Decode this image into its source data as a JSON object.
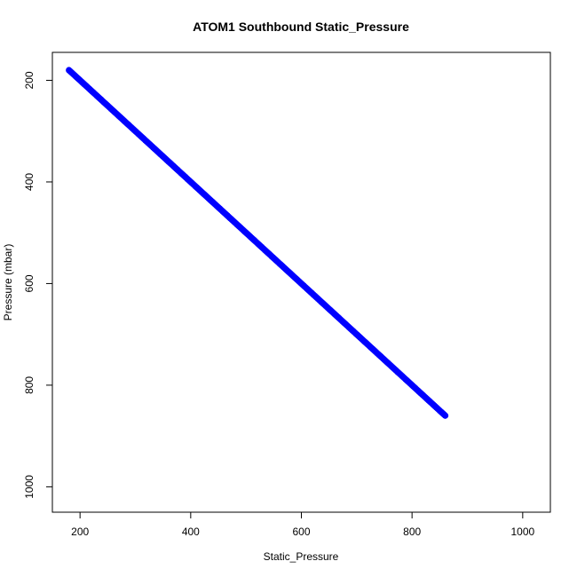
{
  "chart_data": {
    "type": "scatter",
    "title": "ATOM1 Southbound Static_Pressure",
    "xlabel": "Static_Pressure",
    "ylabel": "Pressure (mbar)",
    "xlim": [
      150,
      1050
    ],
    "ylim": [
      1050,
      145
    ],
    "y_reversed": true,
    "x_ticks": [
      200,
      400,
      600,
      800,
      1000
    ],
    "y_ticks": [
      200,
      400,
      600,
      800,
      1000
    ],
    "x_tick_labels": [
      "200",
      "400",
      "600",
      "800",
      "1000"
    ],
    "y_tick_labels": [
      "200",
      "400",
      "600",
      "800",
      "1000"
    ],
    "grid": false,
    "series": [
      {
        "color": "#0000ff",
        "x_start": 180,
        "x_end": 860,
        "x_step": 2,
        "relation": "y = x"
      }
    ]
  }
}
